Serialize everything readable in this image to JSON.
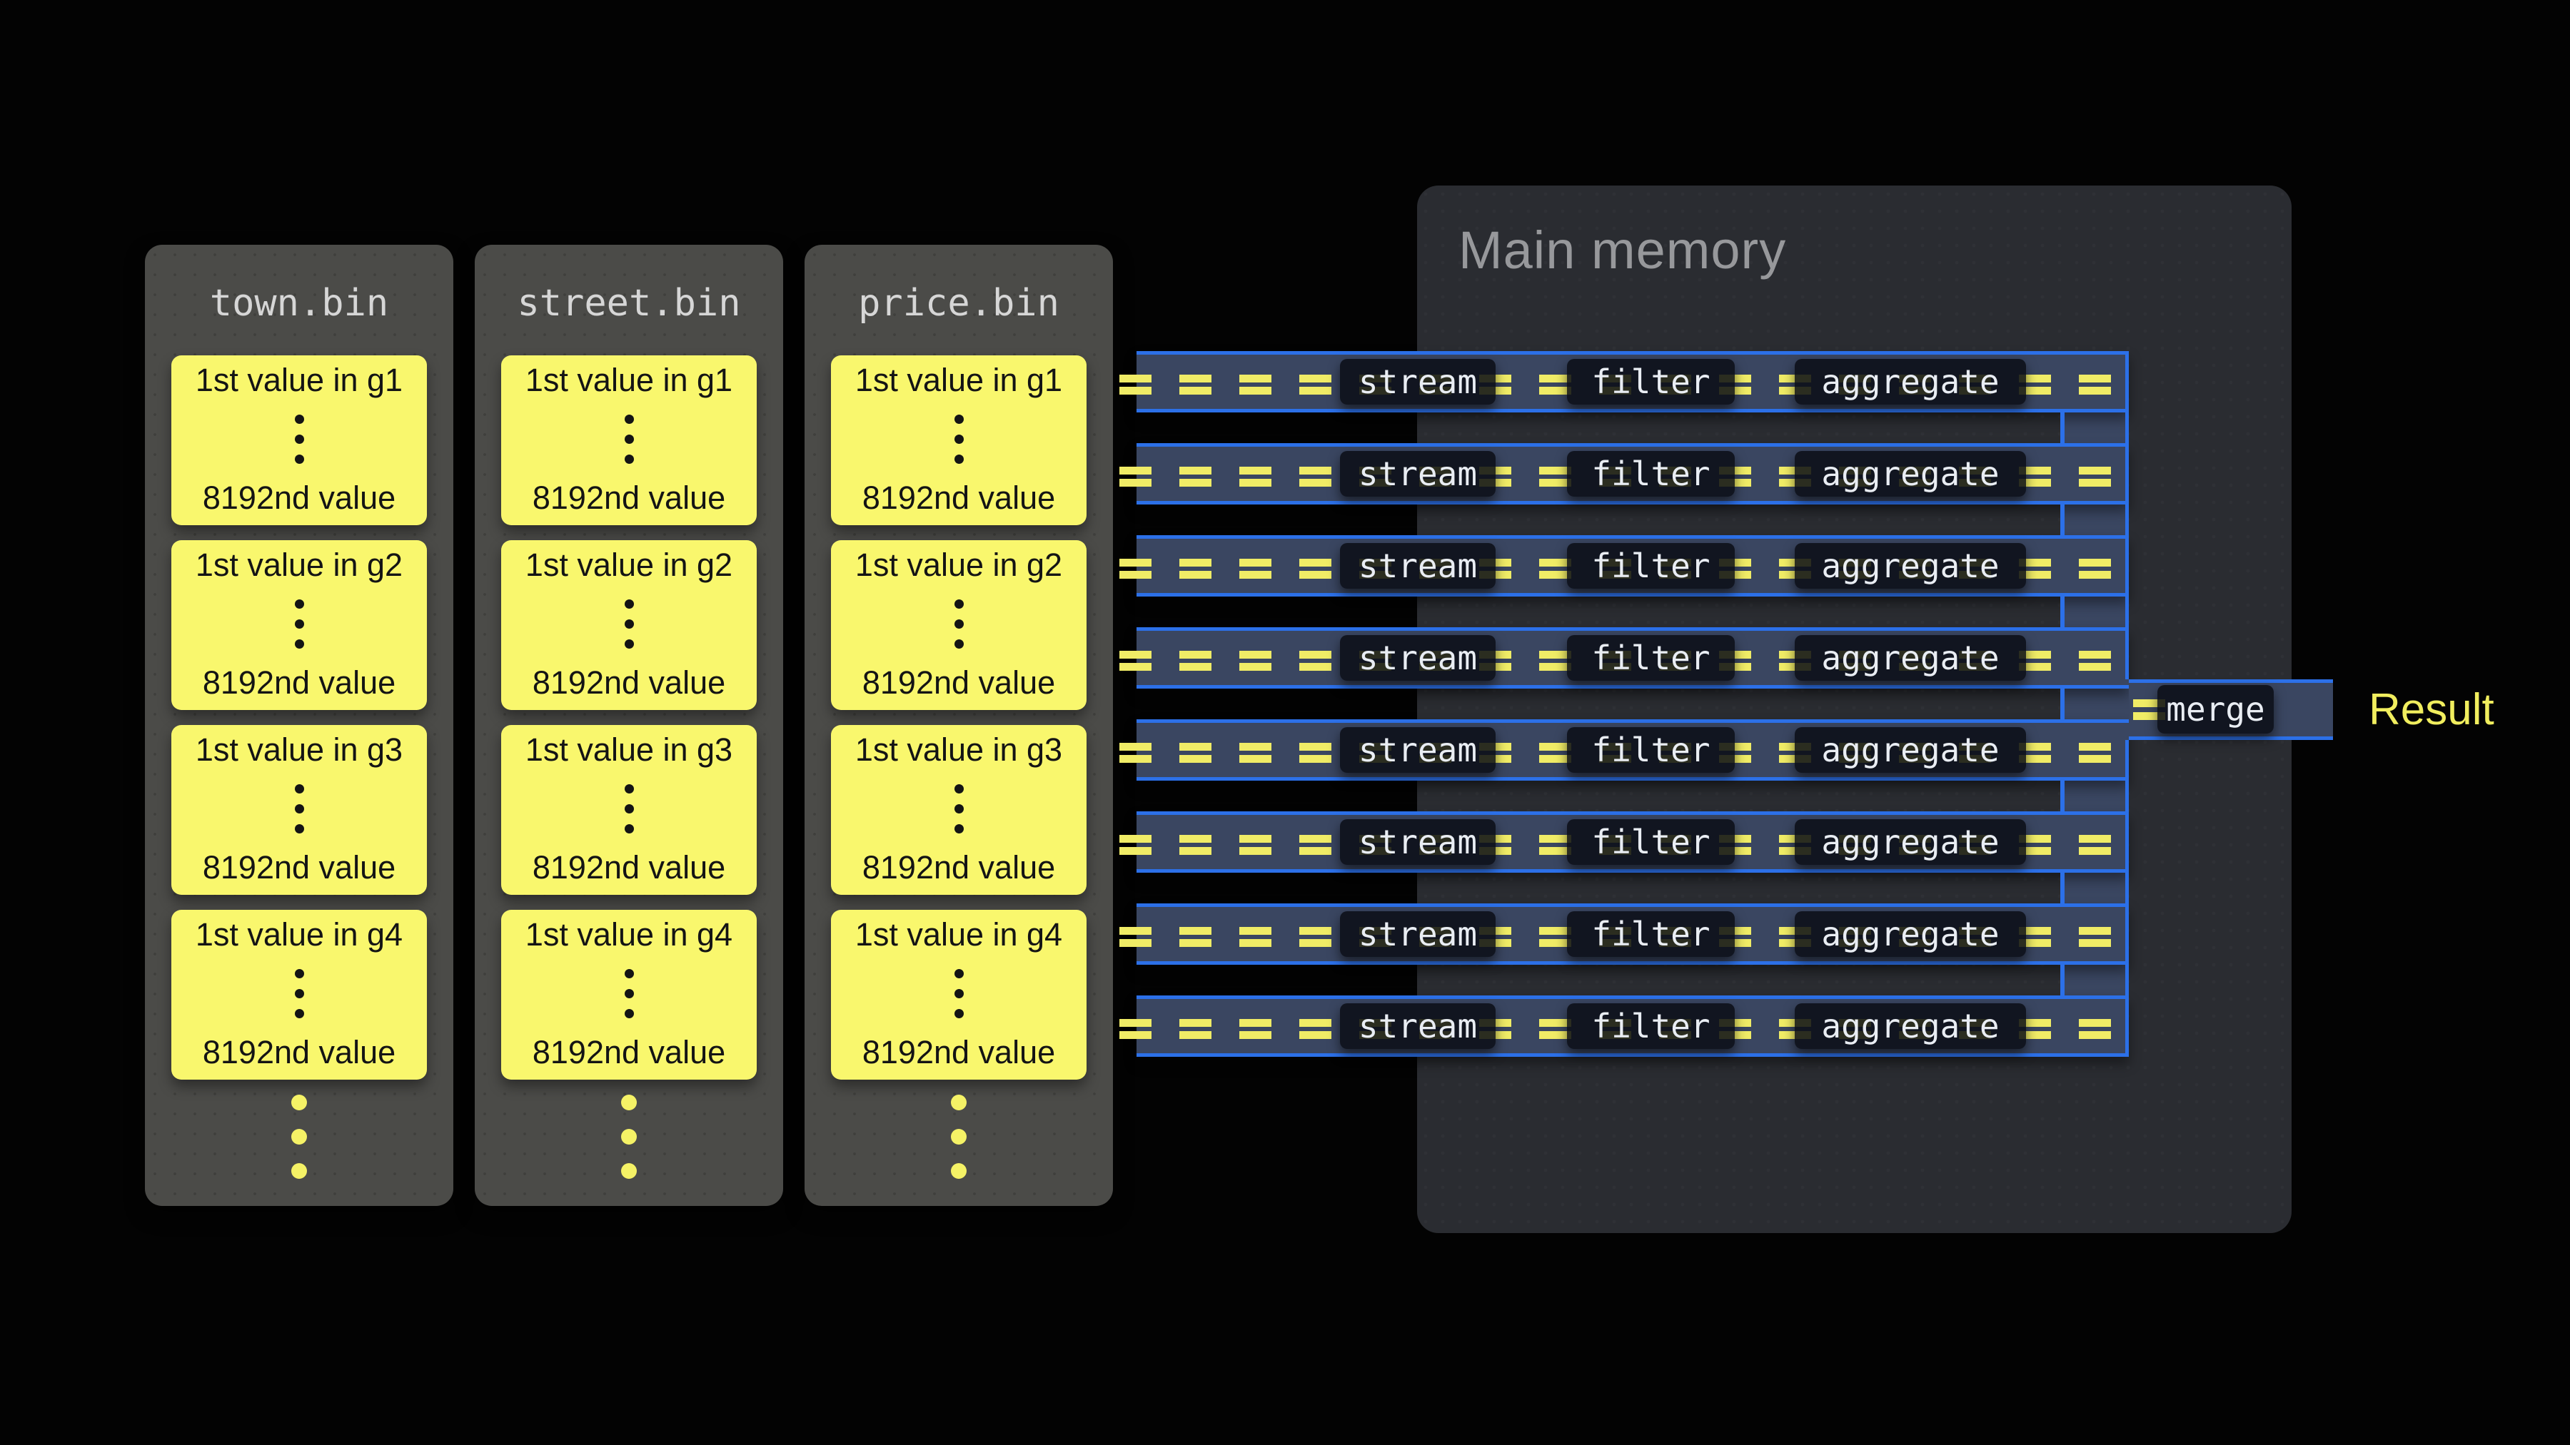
{
  "colors": {
    "background": "#030303",
    "column_bg": "#4b4b48",
    "column_title": "#d6d6d6",
    "block_bg": "#f9f76d",
    "block_text": "#141414",
    "dots_yellow": "#f5f266",
    "memory_bg": "#2a2c31",
    "memory_title": "#97989b",
    "lane_fill": "#3a4661",
    "lane_border": "#2c70e8",
    "dash_yellow": "#f0ec66",
    "stage_box_bg": "rgba(10,13,21,0.86)",
    "stage_text": "#e9edf3",
    "result_text": "#f1ee5e"
  },
  "columns": [
    {
      "title": "town.bin",
      "footer_ellipsis_dots": 3,
      "blocks": [
        {
          "first": "1st value in g1",
          "last": "8192nd value",
          "ellipsis_dots": 3
        },
        {
          "first": "1st value in g2",
          "last": "8192nd value",
          "ellipsis_dots": 3
        },
        {
          "first": "1st value in g3",
          "last": "8192nd value",
          "ellipsis_dots": 3
        },
        {
          "first": "1st value in g4",
          "last": "8192nd value",
          "ellipsis_dots": 3
        }
      ]
    },
    {
      "title": "street.bin",
      "footer_ellipsis_dots": 3,
      "blocks": [
        {
          "first": "1st value in g1",
          "last": "8192nd value",
          "ellipsis_dots": 3
        },
        {
          "first": "1st value in g2",
          "last": "8192nd value",
          "ellipsis_dots": 3
        },
        {
          "first": "1st value in g3",
          "last": "8192nd value",
          "ellipsis_dots": 3
        },
        {
          "first": "1st value in g4",
          "last": "8192nd value",
          "ellipsis_dots": 3
        }
      ]
    },
    {
      "title": "price.bin",
      "footer_ellipsis_dots": 3,
      "blocks": [
        {
          "first": "1st value in g1",
          "last": "8192nd value",
          "ellipsis_dots": 3
        },
        {
          "first": "1st value in g2",
          "last": "8192nd value",
          "ellipsis_dots": 3
        },
        {
          "first": "1st value in g3",
          "last": "8192nd value",
          "ellipsis_dots": 3
        },
        {
          "first": "1st value in g4",
          "last": "8192nd value",
          "ellipsis_dots": 3
        }
      ]
    }
  ],
  "main_memory": {
    "title": "Main memory"
  },
  "pipeline": {
    "lanes": [
      {
        "stages": [
          "stream",
          "filter",
          "aggregate"
        ]
      },
      {
        "stages": [
          "stream",
          "filter",
          "aggregate"
        ]
      },
      {
        "stages": [
          "stream",
          "filter",
          "aggregate"
        ]
      },
      {
        "stages": [
          "stream",
          "filter",
          "aggregate"
        ]
      },
      {
        "stages": [
          "stream",
          "filter",
          "aggregate"
        ]
      },
      {
        "stages": [
          "stream",
          "filter",
          "aggregate"
        ]
      },
      {
        "stages": [
          "stream",
          "filter",
          "aggregate"
        ]
      },
      {
        "stages": [
          "stream",
          "filter",
          "aggregate"
        ]
      }
    ],
    "merge_label": "merge",
    "result_label": "Result"
  }
}
